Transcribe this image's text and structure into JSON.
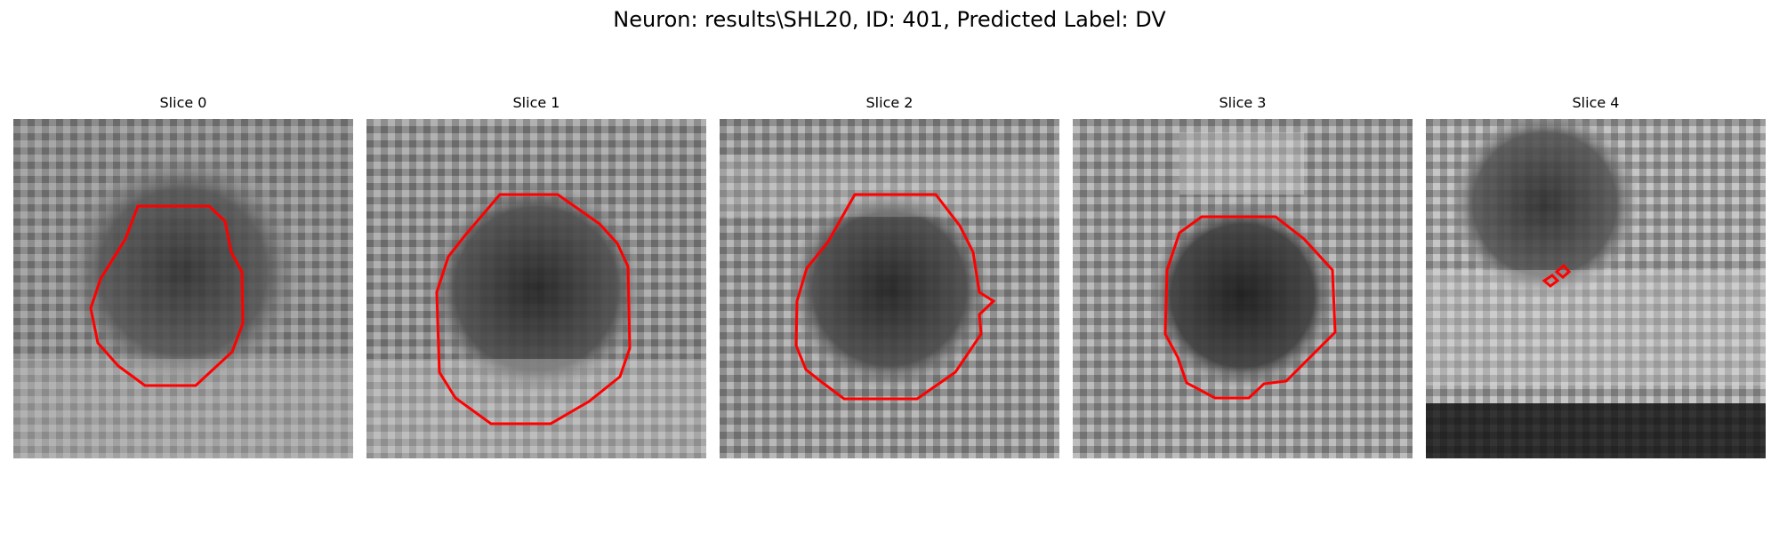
{
  "figure": {
    "title": "Neuron: results\\SHL20, ID: 401, Predicted Label: DV"
  },
  "panels": [
    {
      "title": "Slice 0",
      "image_description": "grayscale patch",
      "outline_color": "#ff0000"
    },
    {
      "title": "Slice 1",
      "image_description": "grayscale patch",
      "outline_color": "#ff0000"
    },
    {
      "title": "Slice 2",
      "image_description": "grayscale patch",
      "outline_color": "#ff0000"
    },
    {
      "title": "Slice 3",
      "image_description": "grayscale patch",
      "outline_color": "#ff0000"
    },
    {
      "title": "Slice 4",
      "image_description": "grayscale patch",
      "outline_color": "#ff0000"
    }
  ],
  "colors": {
    "outline": "#ff0000",
    "background": "#ffffff"
  }
}
